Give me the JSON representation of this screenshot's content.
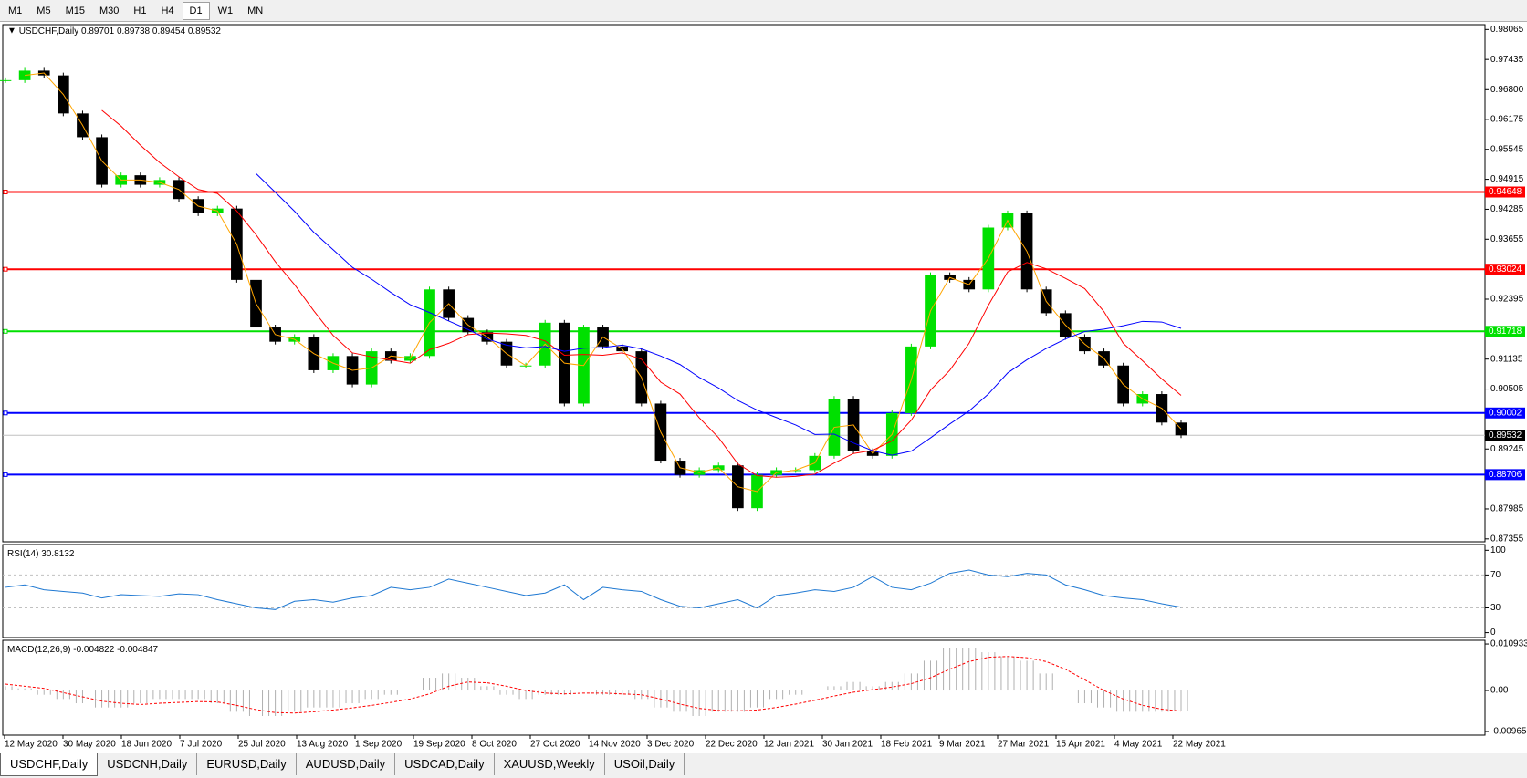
{
  "toolbar": {
    "timeframes": [
      "M1",
      "M5",
      "M15",
      "M30",
      "H1",
      "H4",
      "D1",
      "W1",
      "MN"
    ],
    "active": "D1"
  },
  "chart_data": {
    "type": "candlestick",
    "symbol": "USDCHF,Daily",
    "ohlc": [
      0.89701,
      0.89738,
      0.89454,
      0.89532
    ],
    "closes": [
      0.97,
      0.972,
      0.971,
      0.963,
      0.958,
      0.948,
      0.95,
      0.948,
      0.949,
      0.945,
      0.942,
      0.943,
      0.928,
      0.918,
      0.915,
      0.916,
      0.909,
      0.912,
      0.906,
      0.913,
      0.911,
      0.912,
      0.926,
      0.92,
      0.917,
      0.915,
      0.91,
      0.91,
      0.919,
      0.902,
      0.918,
      0.914,
      0.913,
      0.902,
      0.89,
      0.887,
      0.888,
      0.889,
      0.88,
      0.887,
      0.888,
      0.888,
      0.891,
      0.903,
      0.892,
      0.891,
      0.9,
      0.914,
      0.929,
      0.928,
      0.926,
      0.939,
      0.942,
      0.926,
      0.921,
      0.916,
      0.913,
      0.91,
      0.902,
      0.904,
      0.898,
      0.89532
    ],
    "up_color": "#00e000",
    "down_color": "#000000",
    "ylim": [
      0.87294,
      0.98167
    ],
    "yticks": [
      0.98065,
      0.97435,
      {
        "value": 0.968,
        "label": "0.96800"
      },
      0.96175,
      0.95545,
      0.94915,
      0.94285,
      0.93655,
      0.92395,
      0.91135,
      0.90505,
      0.89245,
      0.87985,
      0.87355
    ],
    "levels": [
      {
        "value": 0.94648,
        "color": "#ff0000"
      },
      {
        "value": 0.93024,
        "color": "#ff0000"
      },
      {
        "value": 0.91718,
        "color": "#00e000"
      },
      {
        "value": 0.90002,
        "color": "#0000ff"
      },
      {
        "value": 0.88706,
        "color": "#0000ff"
      }
    ],
    "bid": 0.89532,
    "dates": [
      "12 May 2020",
      "30 May 2020",
      "18 Jun 2020",
      "7 Jul 2020",
      "25 Jul 2020",
      "13 Aug 2020",
      "1 Sep 2020",
      "19 Sep 2020",
      "8 Oct 2020",
      "27 Oct 2020",
      "14 Nov 2020",
      "3 Dec 2020",
      "22 Dec 2020",
      "12 Jan 2021",
      "30 Jan 2021",
      "18 Feb 2021",
      "9 Mar 2021",
      "27 Mar 2021",
      "15 Apr 2021",
      "4 May 2021",
      "22 May 2021"
    ]
  },
  "rsi": {
    "label": "RSI(14)",
    "current": 30.8132,
    "color": "#1e78d2",
    "values": [
      55,
      58,
      52,
      50,
      48,
      42,
      46,
      45,
      44,
      47,
      46,
      40,
      35,
      30,
      28,
      38,
      40,
      37,
      42,
      45,
      55,
      52,
      55,
      65,
      60,
      55,
      50,
      45,
      48,
      58,
      40,
      55,
      52,
      50,
      40,
      32,
      30,
      35,
      40,
      30,
      45,
      48,
      52,
      50,
      55,
      68,
      55,
      52,
      60,
      72,
      76,
      70,
      68,
      72,
      70,
      58,
      52,
      45,
      42,
      40,
      35,
      30.8132
    ],
    "ylim": [
      -6,
      107
    ],
    "yticks": [
      100,
      70,
      30,
      0
    ],
    "levels": [
      70,
      30
    ]
  },
  "macd": {
    "label": "MACD(12,26,9)",
    "main": -0.004822,
    "signal_value": -0.004847,
    "histogram": [
      0.001,
      0.0005,
      -0.001,
      -0.002,
      -0.003,
      -0.004,
      -0.004,
      -0.003,
      -0.002,
      -0.002,
      -0.002,
      -0.003,
      -0.005,
      -0.006,
      -0.006,
      -0.005,
      -0.004,
      -0.004,
      -0.003,
      -0.002,
      -0.001,
      0,
      0.003,
      0.004,
      0.003,
      0.001,
      -0.001,
      -0.002,
      -0.001,
      -0.001,
      0,
      -0.001,
      -0.001,
      -0.002,
      -0.004,
      -0.005,
      -0.006,
      -0.005,
      -0.005,
      -0.004,
      -0.002,
      -0.001,
      0,
      0.001,
      0.002,
      0.001,
      0.002,
      0.004,
      0.007,
      0.01,
      0.01,
      0.009,
      0.008,
      0.007,
      0.004,
      0,
      -0.003,
      -0.004,
      -0.005,
      -0.005,
      -0.005,
      -0.004822
    ],
    "signal": [
      0.0015,
      0.001,
      0.0005,
      -0.0005,
      -0.0015,
      -0.0025,
      -0.003,
      -0.0033,
      -0.003,
      -0.0028,
      -0.0026,
      -0.0027,
      -0.0035,
      -0.0045,
      -0.0052,
      -0.0053,
      -0.005,
      -0.0046,
      -0.0041,
      -0.0035,
      -0.0028,
      -0.002,
      -0.0008,
      0.001,
      0.002,
      0.0018,
      0.001,
      0,
      -0.0006,
      -0.0008,
      -0.0006,
      -0.0006,
      -0.0008,
      -0.001,
      -0.002,
      -0.0032,
      -0.0042,
      -0.0047,
      -0.0048,
      -0.0046,
      -0.004,
      -0.0032,
      -0.0023,
      -0.0013,
      -0.0004,
      0.0002,
      0.0008,
      0.0016,
      0.003,
      0.005,
      0.0068,
      0.0078,
      0.008,
      0.0077,
      0.0068,
      0.005,
      0.0025,
      0,
      -0.002,
      -0.0035,
      -0.0044,
      -0.004847
    ],
    "ylim": [
      -0.0105,
      0.0118
    ],
    "yticks": [
      0.010933,
      {
        "value": 0,
        "label": "0.00"
      },
      -0.009653
    ]
  },
  "tabs": [
    "USDCHF,Daily",
    "USDCNH,Daily",
    "EURUSD,Daily",
    "AUDUSD,Daily",
    "USDCAD,Daily",
    "XAUUSD,Weekly",
    "USOil,Daily"
  ]
}
